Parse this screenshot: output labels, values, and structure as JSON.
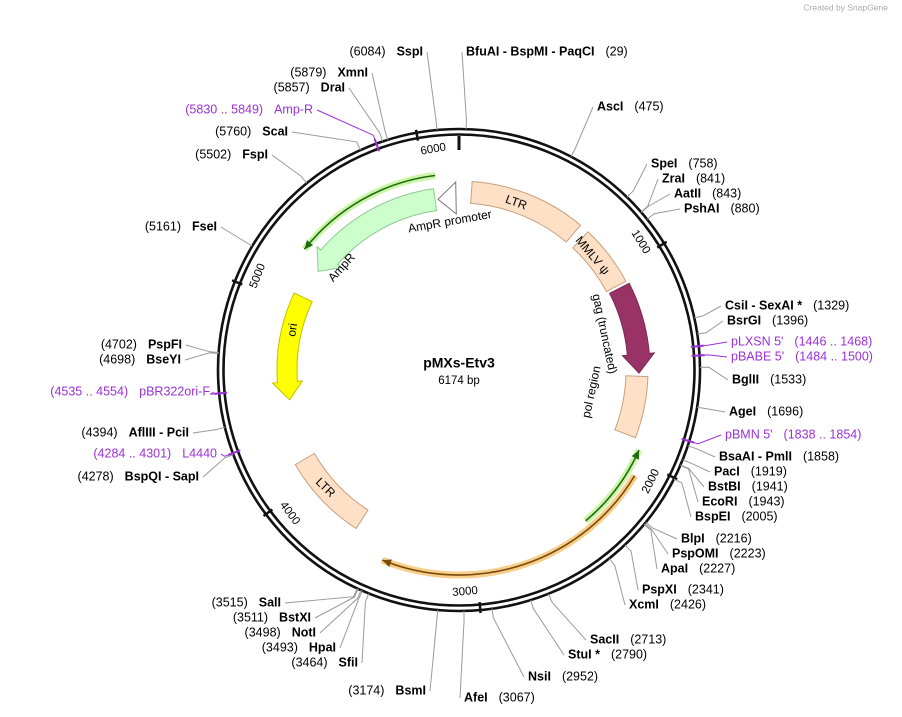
{
  "watermark": "Created by SnapGene",
  "map": {
    "name": "pMXs-Etv3",
    "length": "6174 bp",
    "ruler": [
      1000,
      2000,
      3000,
      4000,
      5000,
      6000
    ]
  },
  "sites": [
    {
      "name": "BfuAI  - BspMI  - PaqCI",
      "position": "(29)"
    },
    {
      "name": "AscI",
      "position": "(475)"
    },
    {
      "name": "SpeI",
      "position": "(758)"
    },
    {
      "name": "ZraI",
      "position": "(841)"
    },
    {
      "name": "AatII",
      "position": "(843)"
    },
    {
      "name": "PshAI",
      "position": "(880)"
    },
    {
      "name": "CsiI  - SexAI *",
      "position": "(1329)"
    },
    {
      "name": "BsrGI",
      "position": "(1396)"
    },
    {
      "name": "BglII",
      "position": "(1533)"
    },
    {
      "name": "AgeI",
      "position": "(1696)"
    },
    {
      "name": "BsaAI  - PmlI",
      "position": "(1858)"
    },
    {
      "name": "PacI",
      "position": "(1919)"
    },
    {
      "name": "BstBI",
      "position": "(1941)"
    },
    {
      "name": "EcoRI",
      "position": "(1943)"
    },
    {
      "name": "BspEI",
      "position": "(2005)"
    },
    {
      "name": "BlpI",
      "position": "(2216)"
    },
    {
      "name": "PspOMI",
      "position": "(2223)"
    },
    {
      "name": "ApaI",
      "position": "(2227)"
    },
    {
      "name": "PspXI",
      "position": "(2341)"
    },
    {
      "name": "XcmI",
      "position": "(2426)"
    },
    {
      "name": "SacII",
      "position": "(2713)"
    },
    {
      "name": "StuI *",
      "position": "(2790)"
    },
    {
      "name": "NsiI",
      "position": "(2952)"
    },
    {
      "name": "AfeI",
      "position": "(3067)"
    },
    {
      "name": "BsmI",
      "position": "(3174)"
    },
    {
      "name": "SfiI",
      "position": "(3464)"
    },
    {
      "name": "HpaI",
      "position": "(3493)"
    },
    {
      "name": "NotI",
      "position": "(3498)"
    },
    {
      "name": "BstXI",
      "position": "(3511)"
    },
    {
      "name": "SalI",
      "position": "(3515)"
    },
    {
      "name": "BspQI  - SapI",
      "position": "(4278)"
    },
    {
      "name": "AflIII  - PciI",
      "position": "(4394)"
    },
    {
      "name": "BseYI",
      "position": "(4698)"
    },
    {
      "name": "PspFI",
      "position": "(4702)"
    },
    {
      "name": "FseI",
      "position": "(5161)"
    },
    {
      "name": "FspI",
      "position": "(5502)"
    },
    {
      "name": "ScaI",
      "position": "(5760)"
    },
    {
      "name": "DraI",
      "position": "(5857)"
    },
    {
      "name": "XmnI",
      "position": "(5879)"
    },
    {
      "name": "SspI",
      "position": "(6084)"
    }
  ],
  "primers": [
    {
      "name": "Amp-R",
      "range": "(5830 .. 5849)"
    },
    {
      "name": "pLXSN 5'",
      "range": "(1446 .. 1468)"
    },
    {
      "name": "pBABE 5'",
      "range": "(1484 .. 1500)"
    },
    {
      "name": "pBMN 5'",
      "range": "(1838 .. 1854)"
    },
    {
      "name": "pBR322ori-F",
      "range": "(4535 .. 4554)"
    },
    {
      "name": "L4440",
      "range": "(4284 .. 4301)"
    }
  ],
  "features": [
    {
      "label": "LTR"
    },
    {
      "label": "MMLV ψ"
    },
    {
      "label": "gag (truncated)"
    },
    {
      "label": "pol region"
    },
    {
      "label": "AmpR"
    },
    {
      "label": "AmpR promoter"
    },
    {
      "label": "ori"
    },
    {
      "label": "LTR"
    }
  ]
}
